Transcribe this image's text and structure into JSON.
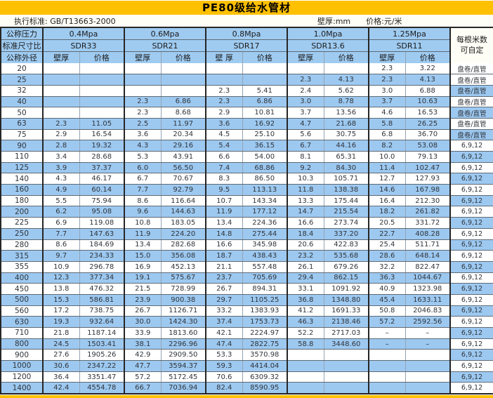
{
  "title": "PE80级给水管材",
  "subtitle": {
    "standard": "执行标准: GB/T13663-2000",
    "wall_unit": "壁厚:mm",
    "price_unit": "价格:元/米"
  },
  "colors": {
    "accent_yellow": "#FFC000",
    "band_blue": "#9DC9F1",
    "header_blue": "#9FCBF1"
  },
  "header": {
    "pressure_label": "公称压力",
    "sdr_label": "标准尺寸比",
    "diameter_label": "公称外径",
    "note_label_line1": "每根米数",
    "note_label_line2": "可自定",
    "groups": [
      {
        "pressure": "0.4Mpa",
        "sdr": "SDR33",
        "wall": "壁厚",
        "price": "价格"
      },
      {
        "pressure": "0.6Mpa",
        "sdr": "SDR21",
        "wall": "壁厚",
        "price": "价格"
      },
      {
        "pressure": "0.8Mpa",
        "sdr": "SDR17",
        "wall": "壁 厚",
        "price": "价格"
      },
      {
        "pressure": "1.0Mpa",
        "sdr": "SDR13.6",
        "wall": "壁厚",
        "price": "价格"
      },
      {
        "pressure": "1.25Mpa",
        "sdr": "SDR11",
        "wall": "壁厚",
        "price": "价格"
      }
    ]
  },
  "rows": [
    {
      "dn": "20",
      "v": [
        "",
        "",
        "",
        "",
        "",
        "",
        "",
        "",
        "2.3",
        "3.22"
      ],
      "note": "盘卷/直管"
    },
    {
      "dn": "25",
      "v": [
        "",
        "",
        "",
        "",
        "",
        "",
        "2.3",
        "4.13",
        "2.3",
        "4.13"
      ],
      "note": "盘卷/直管"
    },
    {
      "dn": "32",
      "v": [
        "",
        "",
        "",
        "",
        "2.3",
        "5.41",
        "2.4",
        "5.62",
        "3.0",
        "6.88"
      ],
      "note": "盘卷/直管"
    },
    {
      "dn": "40",
      "v": [
        "",
        "",
        "2.3",
        "6.86",
        "2.3",
        "6.86",
        "3.0",
        "8.78",
        "3.7",
        "10.63"
      ],
      "note": "盘卷/直管"
    },
    {
      "dn": "50",
      "v": [
        "",
        "",
        "2.3",
        "8.68",
        "2.9",
        "10.81",
        "3.7",
        "13.56",
        "4.6",
        "16.53"
      ],
      "note": "盘卷/直管"
    },
    {
      "dn": "63",
      "v": [
        "2.3",
        "11.05",
        "2.5",
        "11.97",
        "3.6",
        "16.92",
        "4.7",
        "21.68",
        "5.8",
        "26.25"
      ],
      "note": "盘卷/直管"
    },
    {
      "dn": "75",
      "v": [
        "2.9",
        "16.54",
        "3.6",
        "20.34",
        "4.5",
        "25.10",
        "5.6",
        "30.75",
        "6.8",
        "36.70"
      ],
      "note": "盘卷/直管"
    },
    {
      "dn": "90",
      "v": [
        "2.8",
        "19.32",
        "4.3",
        "29.16",
        "5.4",
        "36.15",
        "6.7",
        "44.16",
        "8.2",
        "53.08"
      ],
      "note": "6,9,12"
    },
    {
      "dn": "110",
      "v": [
        "3.4",
        "28.68",
        "5.3",
        "43.91",
        "6.6",
        "54.00",
        "8.1",
        "65.31",
        "10.0",
        "79.13"
      ],
      "note": "6,9,12"
    },
    {
      "dn": "125",
      "v": [
        "3.9",
        "37.37",
        "6.0",
        "56.50",
        "7.4",
        "68.86",
        "9.2",
        "84.30",
        "11.4",
        "102.47"
      ],
      "note": "6,9,12"
    },
    {
      "dn": "140",
      "v": [
        "4.3",
        "46.17",
        "6.7",
        "70.67",
        "8.3",
        "86.50",
        "10.3",
        "105.71",
        "12.7",
        "127.93"
      ],
      "note": "6,9,12"
    },
    {
      "dn": "160",
      "v": [
        "4.9",
        "60.14",
        "7.7",
        "92.79",
        "9.5",
        "113.13",
        "11.8",
        "138.38",
        "14.6",
        "167.98"
      ],
      "note": "6,9,12"
    },
    {
      "dn": "180",
      "v": [
        "5.5",
        "75.94",
        "8.6",
        "116.64",
        "10.7",
        "143.34",
        "13.3",
        "175.44",
        "16.4",
        "212.30"
      ],
      "note": "6,9,12"
    },
    {
      "dn": "200",
      "v": [
        "6.2",
        "95.08",
        "9.6",
        "144.63",
        "11.9",
        "177.12",
        "14.7",
        "215.54",
        "18.2",
        "261.82"
      ],
      "note": "6,9,12"
    },
    {
      "dn": "225",
      "v": [
        "6.9",
        "119.08",
        "10.8",
        "183.05",
        "13.4",
        "224.36",
        "16.6",
        "273.74",
        "20.5",
        "331.72"
      ],
      "note": "6,9,12"
    },
    {
      "dn": "250",
      "v": [
        "7.7",
        "147.63",
        "11.9",
        "224.20",
        "14.8",
        "275.44",
        "18.4",
        "337.20",
        "22.7",
        "408.28"
      ],
      "note": "6,9,12"
    },
    {
      "dn": "280",
      "v": [
        "8.6",
        "184.69",
        "13.4",
        "282.68",
        "16.6",
        "345.98",
        "20.6",
        "422.83",
        "25.4",
        "511.71"
      ],
      "note": "6,9,12"
    },
    {
      "dn": "315",
      "v": [
        "9.7",
        "234.33",
        "15.0",
        "356.08",
        "18.7",
        "438.43",
        "23.2",
        "535.68",
        "28.6",
        "648.14"
      ],
      "note": "6,9,12"
    },
    {
      "dn": "355",
      "v": [
        "10.9",
        "296.78",
        "16.9",
        "452.13",
        "21.1",
        "557.48",
        "26.1",
        "679.26",
        "32.2",
        "822.47"
      ],
      "note": "6,9,12"
    },
    {
      "dn": "400",
      "v": [
        "12.3",
        "377.34",
        "19.1",
        "575.67",
        "23.7",
        "705.69",
        "29.4",
        "862.15",
        "36.3",
        "1044.67"
      ],
      "note": "6,9,12"
    },
    {
      "dn": "450",
      "v": [
        "13.8",
        "476.32",
        "21.5",
        "728.99",
        "26.7",
        "894.31",
        "33.1",
        "1091.92",
        "40.9",
        "1323.98"
      ],
      "note": "6,9,12"
    },
    {
      "dn": "500",
      "v": [
        "15.3",
        "586.81",
        "23.9",
        "900.38",
        "29.7",
        "1105.25",
        "36.8",
        "1348.80",
        "45.4",
        "1633.11"
      ],
      "note": "6,9,12"
    },
    {
      "dn": "560",
      "v": [
        "17.2",
        "738.75",
        "26.7",
        "1126.71",
        "33.2",
        "1383.93",
        "41.2",
        "1691.33",
        "50.8",
        "2046.83"
      ],
      "note": "6,9,12"
    },
    {
      "dn": "630",
      "v": [
        "19.3",
        "932.64",
        "30.0",
        "1424.30",
        "37.4",
        "1753.73",
        "46.3",
        "2138.46",
        "57.2",
        "2592.56"
      ],
      "note": "6,9,12"
    },
    {
      "dn": "710",
      "v": [
        "21.8",
        "1187.14",
        "33.9",
        "1813.60",
        "42.1",
        "2224.97",
        "52.2",
        "2717.03",
        "–",
        "–"
      ],
      "note": "6,9,12"
    },
    {
      "dn": "800",
      "v": [
        "24.5",
        "1503.41",
        "38.1",
        "2296.96",
        "47.4",
        "2822.75",
        "58.8",
        "3448.60",
        "–",
        "–"
      ],
      "note": "6,9,12"
    },
    {
      "dn": "900",
      "v": [
        "27.6",
        "1905.26",
        "42.9",
        "2909.50",
        "53.3",
        "3570.98",
        "",
        "",
        "",
        ""
      ],
      "note": "6,9,12"
    },
    {
      "dn": "1000",
      "v": [
        "30.6",
        "2347.22",
        "47.7",
        "3594.37",
        "59.3",
        "4414.04",
        "",
        "",
        "",
        ""
      ],
      "note": "6,9,12"
    },
    {
      "dn": "1200",
      "v": [
        "36.4",
        "3351.47",
        "57.2",
        "5172.45",
        "70.6",
        "6309.32",
        "",
        "",
        "",
        ""
      ],
      "note": "6,9,12"
    },
    {
      "dn": "1400",
      "v": [
        "42.4",
        "4554.78",
        "66.7",
        "7036.94",
        "82.4",
        "8590.95",
        "",
        "",
        "",
        ""
      ],
      "note": "6,9,12"
    }
  ]
}
